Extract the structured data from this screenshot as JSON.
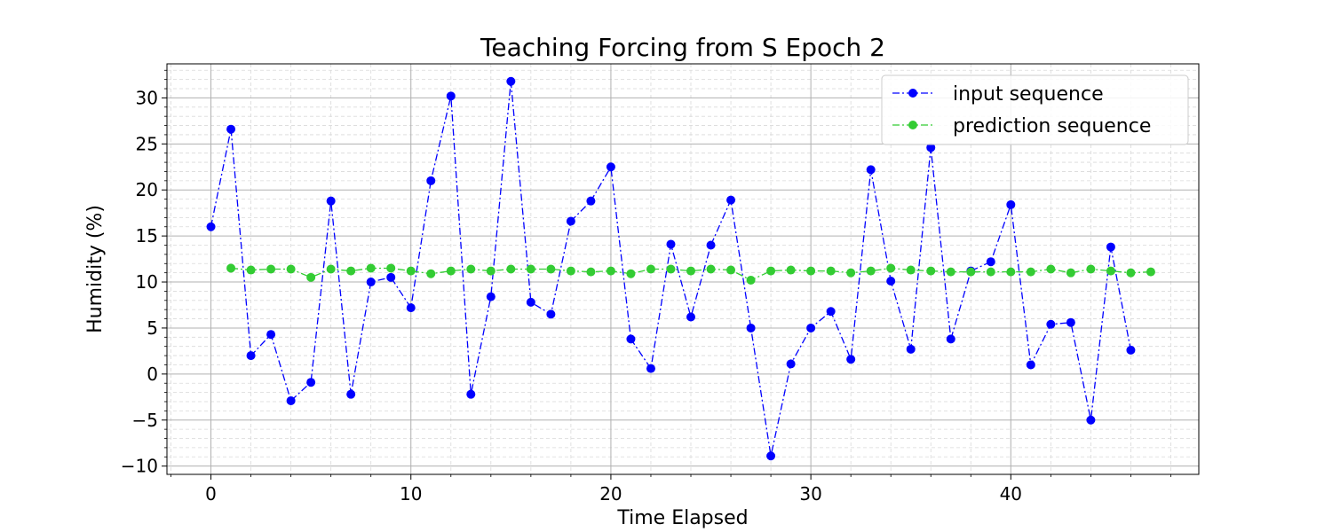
{
  "chart_data": {
    "type": "line",
    "title": "Teaching Forcing from S Epoch 2",
    "xlabel": "Time Elapsed",
    "ylabel": "Humidity (%)",
    "xlim": [
      -2.2,
      49.4
    ],
    "ylim": [
      -10.9,
      33.7
    ],
    "xticks": [
      0,
      10,
      20,
      30,
      40
    ],
    "yticks": [
      -10,
      -5,
      0,
      5,
      10,
      15,
      20,
      25,
      30
    ],
    "grid": true,
    "minor_grid": true,
    "legend_position": "top-right",
    "series": [
      {
        "name": "input sequence",
        "color": "#0000ff",
        "line_style": "dash-dot",
        "marker": "circle",
        "x": [
          0,
          1,
          2,
          3,
          4,
          5,
          6,
          7,
          8,
          9,
          10,
          11,
          12,
          13,
          14,
          15,
          16,
          17,
          18,
          19,
          20,
          21,
          22,
          23,
          24,
          25,
          26,
          27,
          28,
          29,
          30,
          31,
          32,
          33,
          34,
          35,
          36,
          37,
          38,
          39,
          40,
          41,
          42,
          43,
          44,
          45,
          46
        ],
        "values": [
          16.0,
          26.6,
          2.0,
          4.3,
          -2.9,
          -0.9,
          18.8,
          -2.2,
          10.0,
          10.5,
          7.2,
          21.0,
          30.2,
          -2.2,
          8.4,
          31.8,
          7.8,
          6.5,
          16.6,
          18.8,
          22.5,
          3.8,
          0.6,
          14.1,
          6.2,
          14.0,
          18.9,
          5.0,
          -8.9,
          1.1,
          5.0,
          6.8,
          1.6,
          22.2,
          10.1,
          2.7,
          24.6,
          3.8,
          11.2,
          12.2,
          18.4,
          1.0,
          5.4,
          5.6,
          -5.0,
          13.8,
          2.6
        ]
      },
      {
        "name": "prediction sequence",
        "color": "#33cc33",
        "line_style": "dash-dot",
        "marker": "circle",
        "x": [
          1,
          2,
          3,
          4,
          5,
          6,
          7,
          8,
          9,
          10,
          11,
          12,
          13,
          14,
          15,
          16,
          17,
          18,
          19,
          20,
          21,
          22,
          23,
          24,
          25,
          26,
          27,
          28,
          29,
          30,
          31,
          32,
          33,
          34,
          35,
          36,
          37,
          38,
          39,
          40,
          41,
          42,
          43,
          44,
          45,
          46,
          47
        ],
        "values": [
          11.5,
          11.3,
          11.4,
          11.4,
          10.5,
          11.4,
          11.2,
          11.5,
          11.5,
          11.2,
          10.9,
          11.2,
          11.4,
          11.2,
          11.4,
          11.4,
          11.4,
          11.2,
          11.1,
          11.2,
          10.9,
          11.4,
          11.4,
          11.2,
          11.4,
          11.3,
          10.2,
          11.2,
          11.3,
          11.2,
          11.2,
          11.0,
          11.2,
          11.5,
          11.3,
          11.2,
          11.1,
          11.1,
          11.1,
          11.1,
          11.1,
          11.4,
          11.0,
          11.4,
          11.2,
          11.0,
          11.1
        ]
      }
    ]
  }
}
